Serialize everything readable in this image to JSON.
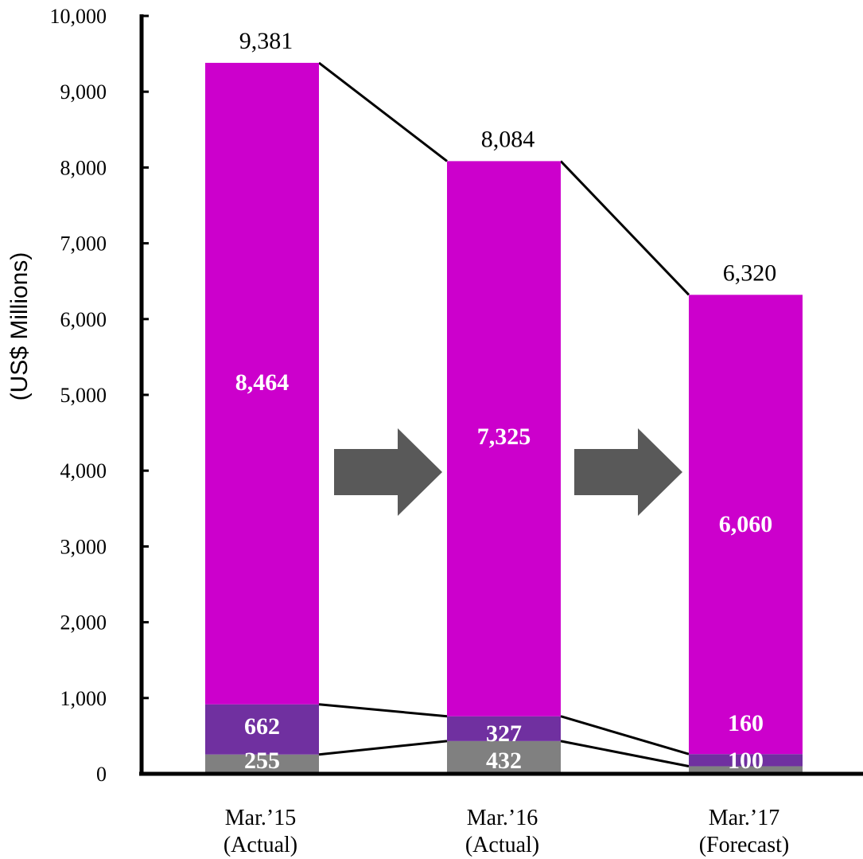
{
  "chart_data": {
    "type": "bar",
    "stacked": true,
    "ylabel": "(US$ Millions)",
    "ylim": [
      0,
      10000
    ],
    "yticks": [
      "0",
      "1,000",
      "2,000",
      "3,000",
      "4,000",
      "5,000",
      "6,000",
      "7,000",
      "8,000",
      "9,000",
      "10,000"
    ],
    "categories": [
      {
        "line1": "Mar.’15",
        "line2": "(Actual)"
      },
      {
        "line1": "Mar.’16",
        "line2": "(Actual)"
      },
      {
        "line1": "Mar.’17",
        "line2": "(Forecast)"
      }
    ],
    "series": [
      {
        "values": [
          255,
          432,
          100
        ],
        "labels": [
          "255",
          "432",
          "100"
        ],
        "color": "#808080"
      },
      {
        "values": [
          662,
          327,
          160
        ],
        "labels": [
          "662",
          "327",
          "160"
        ],
        "color": "#7030A0"
      },
      {
        "values": [
          8464,
          7325,
          6060
        ],
        "labels": [
          "8,464",
          "7,325",
          "6,060"
        ],
        "color": "#CC00CC"
      }
    ],
    "totals": [
      9381,
      8084,
      6320
    ],
    "total_labels": [
      "9,381",
      "8,084",
      "6,320"
    ],
    "arrow_color": "#595959"
  }
}
